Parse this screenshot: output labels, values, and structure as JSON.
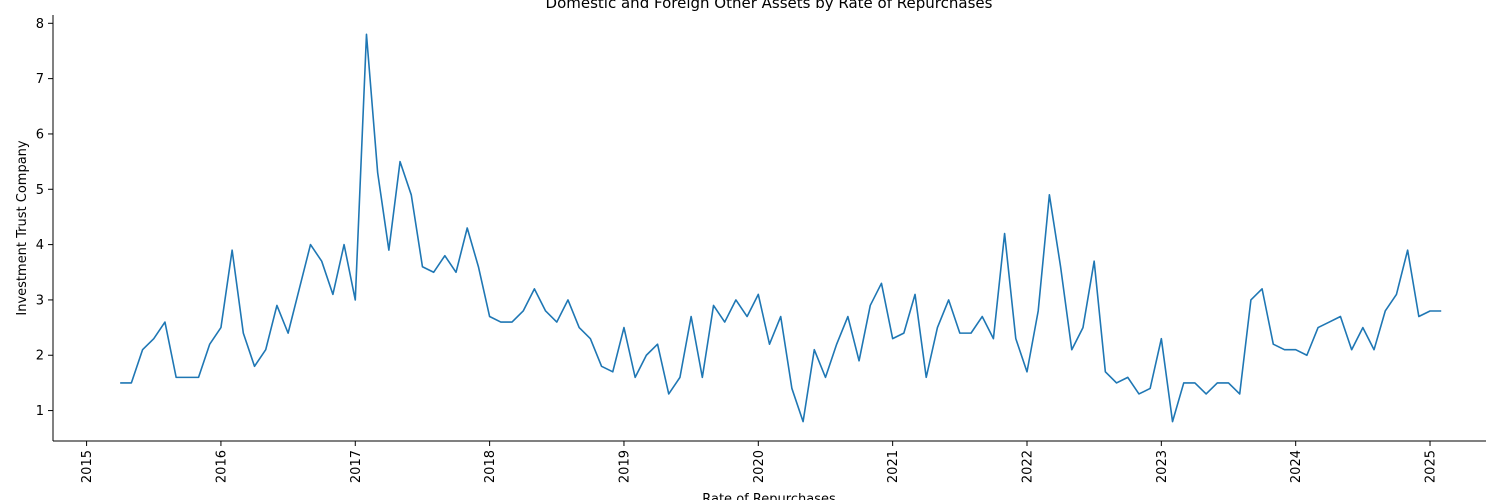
{
  "chart_data": {
    "type": "line",
    "title": "Domestic and Foreign Other Assets by Rate of Repurchases",
    "xlabel": "Rate of Repurchases",
    "ylabel": "Investment Trust Company",
    "x_ticks": [
      "2015",
      "2016",
      "2017",
      "2018",
      "2019",
      "2020",
      "2021",
      "2022",
      "2023",
      "2024",
      "2025"
    ],
    "y_ticks": [
      "1",
      "2",
      "3",
      "4",
      "5",
      "6",
      "7",
      "8"
    ],
    "xlim": [
      "2014-10",
      "2025-06"
    ],
    "ylim": [
      0.45,
      8.15
    ],
    "grid": false,
    "color": "#1f77b4",
    "series": [
      {
        "x": [
          "2015-04",
          "2015-05",
          "2015-06",
          "2015-07",
          "2015-08",
          "2015-09",
          "2015-10",
          "2015-11",
          "2015-12",
          "2016-01",
          "2016-02",
          "2016-03",
          "2016-04",
          "2016-05",
          "2016-06",
          "2016-07",
          "2016-08",
          "2016-09",
          "2016-10",
          "2016-11",
          "2016-12",
          "2017-01",
          "2017-02",
          "2017-03",
          "2017-04",
          "2017-05",
          "2017-06",
          "2017-07",
          "2017-08",
          "2017-09",
          "2017-10",
          "2017-11",
          "2017-12",
          "2018-01",
          "2018-02",
          "2018-03",
          "2018-04",
          "2018-05",
          "2018-06",
          "2018-07",
          "2018-08",
          "2018-09",
          "2018-10",
          "2018-11",
          "2018-12",
          "2019-01",
          "2019-02",
          "2019-03",
          "2019-04",
          "2019-05",
          "2019-06",
          "2019-07",
          "2019-08",
          "2019-09",
          "2019-10",
          "2019-11",
          "2019-12",
          "2020-01",
          "2020-02",
          "2020-03",
          "2020-04",
          "2020-05",
          "2020-06",
          "2020-07",
          "2020-08",
          "2020-09",
          "2020-10",
          "2020-11",
          "2020-12",
          "2021-01",
          "2021-02",
          "2021-03",
          "2021-04",
          "2021-05",
          "2021-06",
          "2021-07",
          "2021-08",
          "2021-09",
          "2021-10",
          "2021-11",
          "2021-12",
          "2022-01",
          "2022-02",
          "2022-03",
          "2022-04",
          "2022-05",
          "2022-06",
          "2022-07",
          "2022-08",
          "2022-09",
          "2022-10",
          "2022-11",
          "2022-12",
          "2023-01",
          "2023-02",
          "2023-03",
          "2023-04",
          "2023-05",
          "2023-06",
          "2023-07",
          "2023-08",
          "2023-09",
          "2023-10",
          "2023-11",
          "2023-12",
          "2024-01",
          "2024-02",
          "2024-03",
          "2024-04",
          "2024-05",
          "2024-06",
          "2024-07",
          "2024-08",
          "2024-09",
          "2024-10",
          "2024-11",
          "2024-12",
          "2025-01",
          "2025-02"
        ],
        "values": [
          1.5,
          1.5,
          2.1,
          2.3,
          2.6,
          1.6,
          1.6,
          1.6,
          2.2,
          2.5,
          3.9,
          2.4,
          1.8,
          2.1,
          2.9,
          2.4,
          3.2,
          4.0,
          3.7,
          3.1,
          4.0,
          3.0,
          7.8,
          5.3,
          3.9,
          5.5,
          4.9,
          3.6,
          3.5,
          3.8,
          3.5,
          4.3,
          3.6,
          2.7,
          2.6,
          2.6,
          2.8,
          3.2,
          2.8,
          2.6,
          3.0,
          2.5,
          2.3,
          1.8,
          1.7,
          2.5,
          1.6,
          2.0,
          2.2,
          1.3,
          1.6,
          2.7,
          1.6,
          2.9,
          2.6,
          3.0,
          2.7,
          3.1,
          2.2,
          2.7,
          1.4,
          0.8,
          2.1,
          1.6,
          2.2,
          2.7,
          1.9,
          2.9,
          3.3,
          2.3,
          2.4,
          3.1,
          1.6,
          2.5,
          3.0,
          2.4,
          2.4,
          2.7,
          2.3,
          4.2,
          2.3,
          1.7,
          2.8,
          4.9,
          3.6,
          2.1,
          2.5,
          3.7,
          1.7,
          1.5,
          1.6,
          1.3,
          1.4,
          2.3,
          0.8,
          1.5,
          1.5,
          1.3,
          1.5,
          1.5,
          1.3,
          3.0,
          3.2,
          2.2,
          2.1,
          2.1,
          2.0,
          2.5,
          2.6,
          2.7,
          2.1,
          2.5,
          2.1,
          2.8,
          3.1,
          3.9,
          2.7,
          2.8,
          2.8
        ]
      }
    ]
  }
}
